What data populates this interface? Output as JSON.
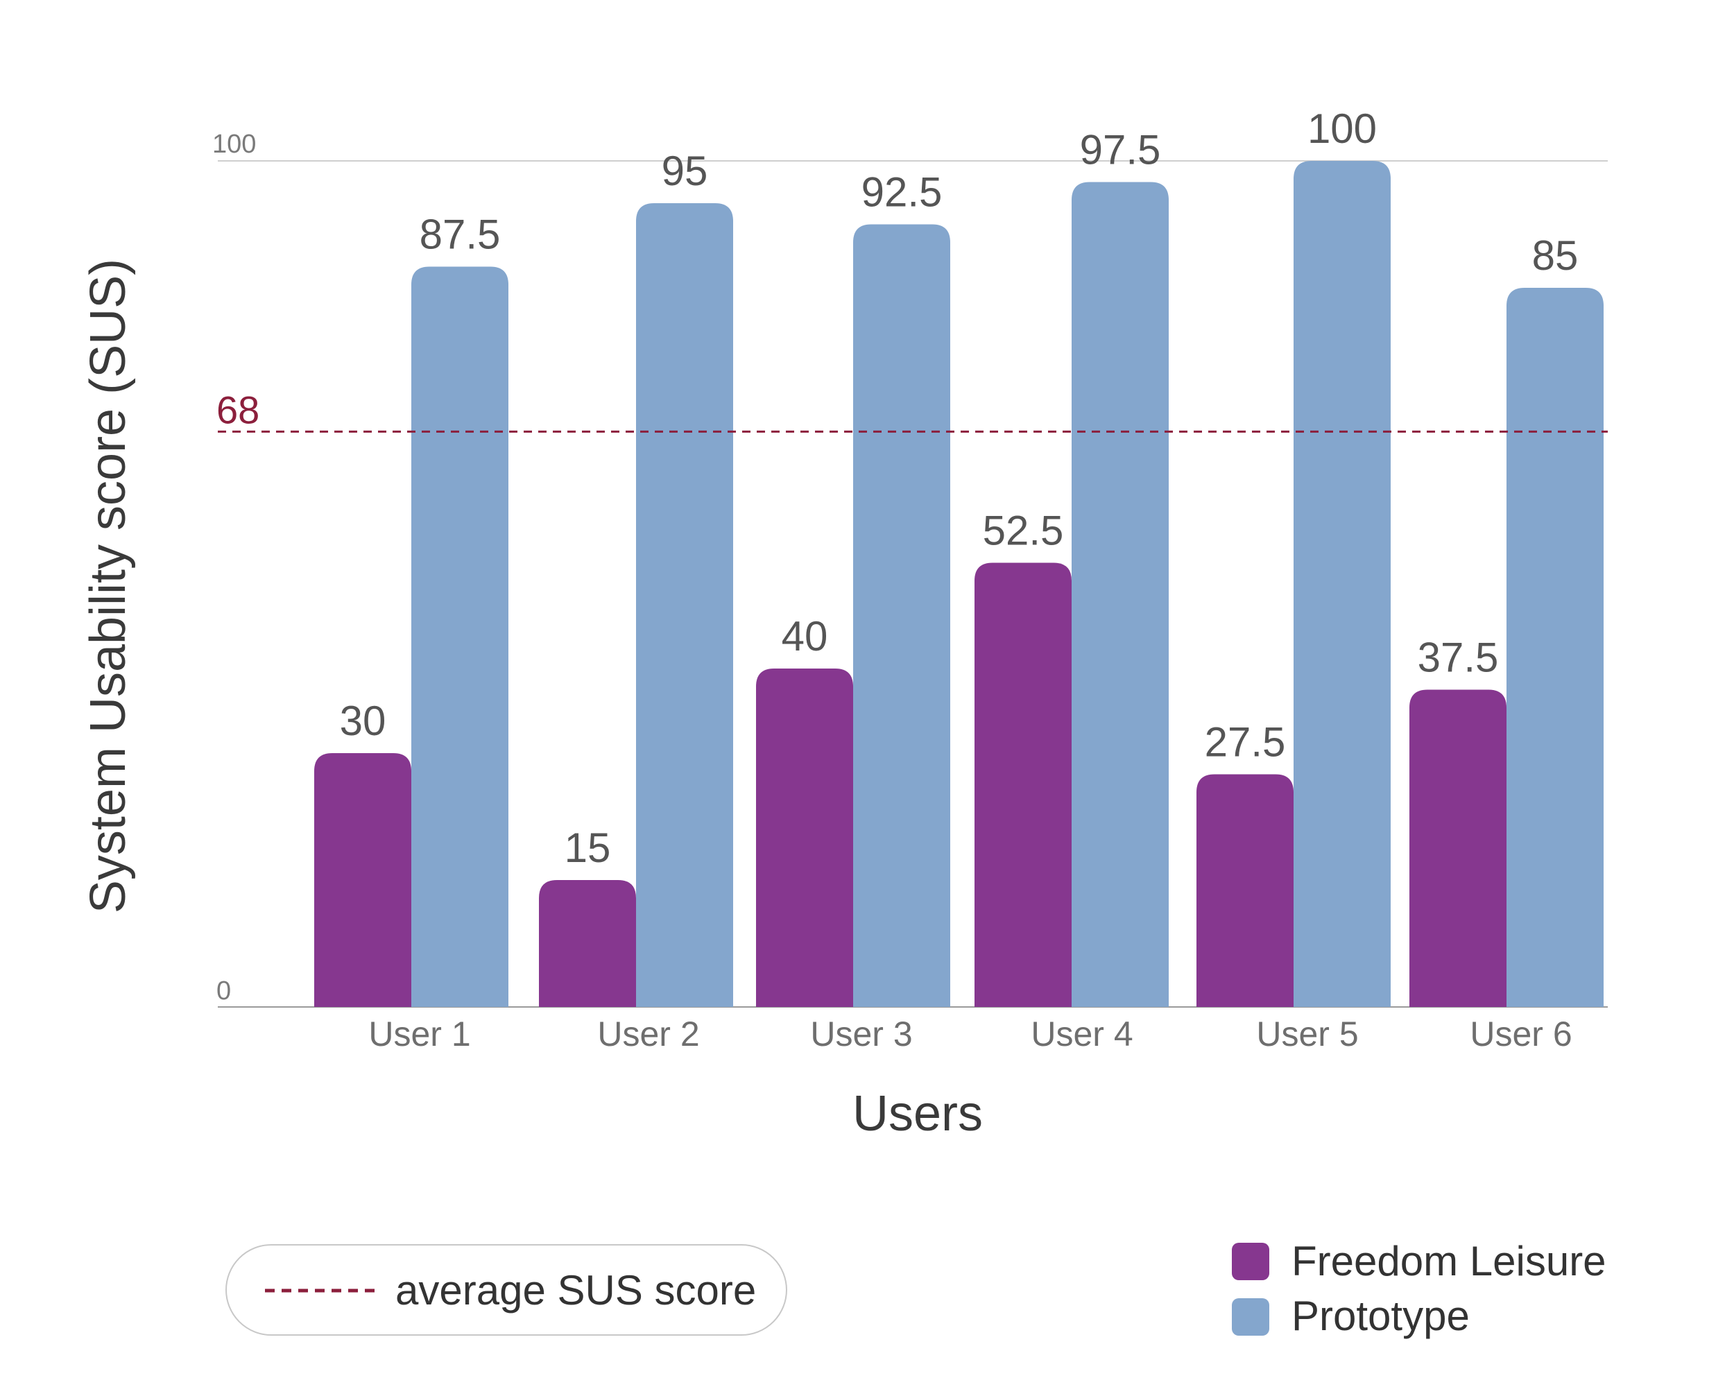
{
  "chart_data": {
    "type": "bar",
    "categories": [
      "User 1",
      "User 2",
      "User 3",
      "User 4",
      "User 5",
      "User 6"
    ],
    "series": [
      {
        "name": "Freedom Leisure",
        "color": "#86378f",
        "values": [
          30,
          15,
          40,
          52.5,
          27.5,
          37.5
        ]
      },
      {
        "name": "Prototype",
        "color": "#84a6cd",
        "values": [
          87.5,
          95,
          92.5,
          97.5,
          100,
          85
        ]
      }
    ],
    "data_labels": {
      "Freedom Leisure": [
        "30",
        "15",
        "40",
        "52.5",
        "27.5",
        "37.5"
      ],
      "Prototype": [
        "87.5",
        "95",
        "92.5",
        "97.5",
        "100",
        "85"
      ]
    },
    "ylim": [
      0,
      100
    ],
    "yticks": [
      "0",
      "100"
    ],
    "reference_line": {
      "value": 68,
      "label": "68",
      "color": "#8c1f3c",
      "legend_label": "average SUS score"
    },
    "xlabel": "Users",
    "ylabel": "System Usability score (SUS)",
    "grid": false,
    "legend_position": "bottom-right"
  }
}
